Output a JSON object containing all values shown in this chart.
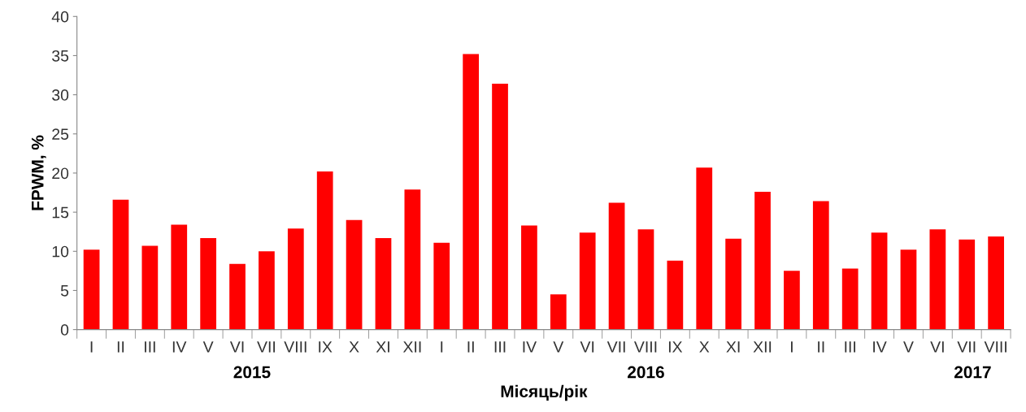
{
  "chart_data": {
    "type": "bar",
    "xlabel": "Місяць/рік",
    "ylabel": "FPWM, %",
    "categories": [
      "I",
      "II",
      "III",
      "IV",
      "V",
      "VI",
      "VII",
      "VIII",
      "IX",
      "X",
      "XI",
      "XII",
      "I",
      "II",
      "III",
      "IV",
      "V",
      "VI",
      "VII",
      "VIII",
      "IX",
      "X",
      "XI",
      "XII",
      "I",
      "II",
      "III",
      "IV",
      "V",
      "VI",
      "VII",
      "VIII"
    ],
    "values": [
      10.2,
      16.6,
      10.7,
      13.4,
      11.7,
      8.4,
      10.0,
      12.9,
      20.2,
      14.0,
      11.7,
      17.9,
      11.1,
      35.2,
      31.4,
      13.3,
      4.5,
      12.4,
      16.2,
      12.8,
      8.8,
      20.7,
      11.6,
      17.6,
      7.5,
      16.4,
      7.8,
      12.4,
      10.2,
      12.8,
      11.5,
      11.9
    ],
    "color": "#ff0000",
    "ylim": [
      0,
      40
    ],
    "yticks": [
      0,
      5,
      10,
      15,
      20,
      25,
      30,
      35,
      40
    ],
    "annotations": [
      "2015",
      "2016",
      "2017"
    ],
    "grid": false,
    "legend": false
  }
}
